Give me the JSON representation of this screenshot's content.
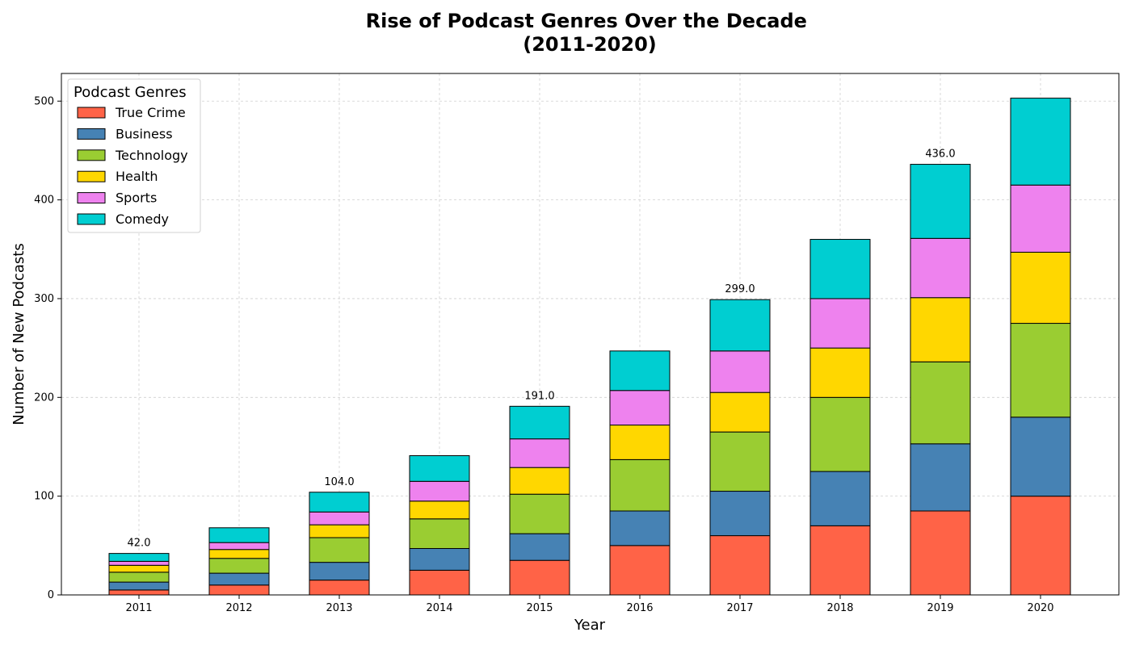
{
  "chart_data": {
    "type": "bar",
    "stacked": true,
    "title": "Rise of Podcast Genres Over the Decade\n(2011-2020)",
    "xlabel": "Year",
    "ylabel": "Number of New Podcasts",
    "categories": [
      "2011",
      "2012",
      "2013",
      "2014",
      "2015",
      "2016",
      "2017",
      "2018",
      "2019",
      "2020"
    ],
    "series": [
      {
        "name": "True Crime",
        "color": "#FF6347",
        "values": [
          5,
          10,
          15,
          25,
          35,
          50,
          60,
          70,
          85,
          100
        ]
      },
      {
        "name": "Business",
        "color": "#4682B4",
        "values": [
          8,
          12,
          18,
          22,
          27,
          35,
          45,
          55,
          68,
          80
        ]
      },
      {
        "name": "Technology",
        "color": "#9ACD32",
        "values": [
          10,
          15,
          25,
          30,
          40,
          52,
          60,
          75,
          83,
          95
        ]
      },
      {
        "name": "Health",
        "color": "#FFD700",
        "values": [
          7,
          9,
          13,
          18,
          27,
          35,
          40,
          50,
          65,
          72
        ]
      },
      {
        "name": "Sports",
        "color": "#EE82EE",
        "values": [
          4,
          7,
          13,
          20,
          29,
          35,
          42,
          50,
          60,
          68
        ]
      },
      {
        "name": "Comedy",
        "color": "#00CED1",
        "values": [
          8,
          15,
          20,
          26,
          33,
          40,
          52,
          60,
          75,
          88
        ]
      }
    ],
    "total_labels": [
      {
        "category": "2011",
        "text": "42.0"
      },
      {
        "category": "2013",
        "text": "104.0"
      },
      {
        "category": "2015",
        "text": "191.0"
      },
      {
        "category": "2017",
        "text": "299.0"
      },
      {
        "category": "2019",
        "text": "436.0"
      }
    ],
    "ylim": [
      0,
      528
    ],
    "yticks": [
      0,
      100,
      200,
      300,
      400,
      500
    ],
    "grid": true,
    "legend": {
      "title": "Podcast Genres",
      "position": "top-left"
    }
  }
}
